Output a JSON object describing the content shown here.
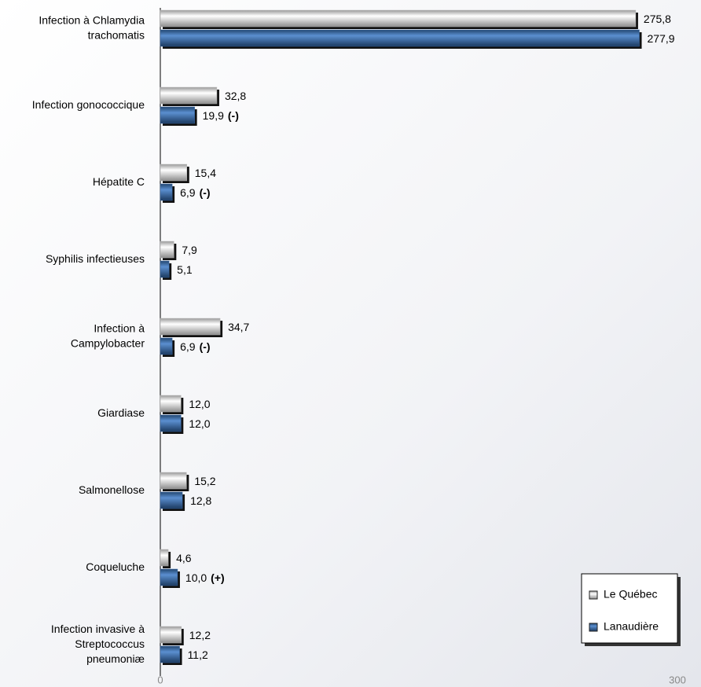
{
  "chart_data": {
    "type": "bar",
    "orientation": "horizontal",
    "categories": [
      "Infection à Chlamydia\ntrachomatis",
      "Infection gonococcique",
      "Hépatite C",
      "Syphilis infectieuses",
      "Infection à\nCampylobacter",
      "Giardiase",
      "Salmonellose",
      "Coqueluche",
      "Infection invasive à\nStreptococcus\npneumoniæ"
    ],
    "series": [
      {
        "name": "Le Québec",
        "color": "#b8b8b8",
        "values": [
          275.8,
          32.8,
          15.4,
          7.9,
          34.7,
          12.0,
          15.2,
          4.6,
          12.2
        ],
        "value_labels": [
          "275,8",
          "32,8",
          "15,4",
          "7,9",
          "34,7",
          "12,0",
          "15,2",
          "4,6",
          "12,2"
        ]
      },
      {
        "name": "Lanaudière",
        "color": "#3a6aa8",
        "values": [
          277.9,
          19.9,
          6.9,
          5.1,
          6.9,
          12.0,
          12.8,
          10.0,
          11.2
        ],
        "value_labels": [
          "277,9",
          "19,9",
          "6,9",
          "5,1",
          "6,9",
          "12,0",
          "12,8",
          "10,0",
          "11,2"
        ],
        "significance": [
          null,
          "(-)",
          "(-)",
          null,
          "(-)",
          null,
          null,
          "(+)",
          null
        ]
      }
    ],
    "significance_colors": {
      "(-)": "#e02020",
      "(+)": "#5a8a2a"
    },
    "xlim": [
      0,
      300
    ],
    "xticks": [
      0,
      300
    ],
    "grid": false,
    "legend": "lower right"
  }
}
